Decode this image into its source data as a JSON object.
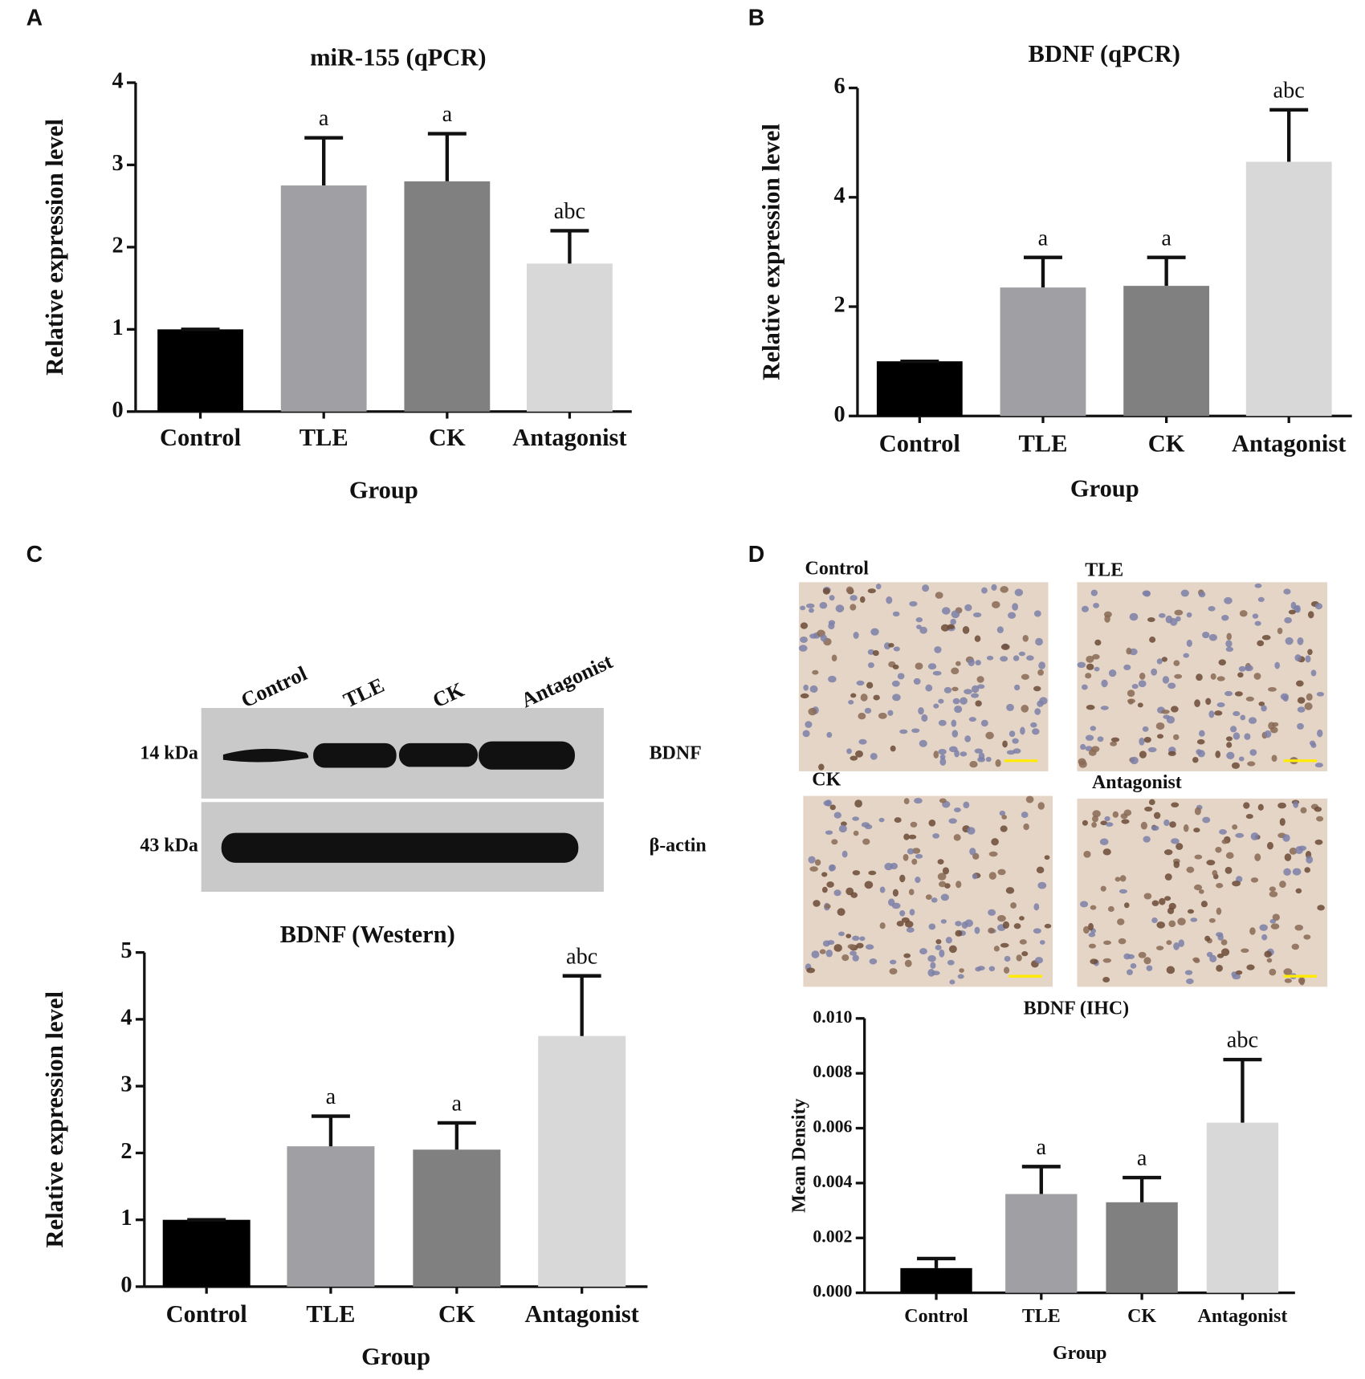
{
  "panels": [
    "A",
    "B",
    "C",
    "D"
  ],
  "chart_data": [
    {
      "type": "bar",
      "title": "miR-155 (qPCR)",
      "xlabel": "Group",
      "ylabel": "Relative expression level",
      "categories": [
        "Control",
        "TLE",
        "CK",
        "Antagonist"
      ],
      "values": [
        1.0,
        2.75,
        2.8,
        1.8
      ],
      "errors": [
        0,
        0.58,
        0.58,
        0.4
      ],
      "annotations": [
        null,
        "a",
        "a",
        "abc"
      ],
      "colors": [
        "#000000",
        "#a0a0a4",
        "#808080",
        "#d8d8d8"
      ],
      "ylim": [
        0,
        4
      ],
      "yticks": [
        0,
        1,
        2,
        3,
        4
      ]
    },
    {
      "type": "bar",
      "title": "BDNF (qPCR)",
      "xlabel": "Group",
      "ylabel": "Relative expression level",
      "categories": [
        "Control",
        "TLE",
        "CK",
        "Antagonist"
      ],
      "values": [
        1.0,
        2.35,
        2.38,
        4.65
      ],
      "errors": [
        0,
        0.55,
        0.52,
        0.95
      ],
      "annotations": [
        null,
        "a",
        "a",
        "abc"
      ],
      "colors": [
        "#000000",
        "#a0a0a4",
        "#808080",
        "#d8d8d8"
      ],
      "ylim": [
        0,
        6
      ],
      "yticks": [
        0,
        2,
        4,
        6
      ]
    },
    {
      "type": "bar",
      "title": "BDNF (Western)",
      "xlabel": "Group",
      "ylabel": "Relative expression level",
      "categories": [
        "Control",
        "TLE",
        "CK",
        "Antagonist"
      ],
      "values": [
        1.0,
        2.1,
        2.05,
        3.75
      ],
      "errors": [
        0,
        0.45,
        0.4,
        0.9
      ],
      "annotations": [
        null,
        "a",
        "a",
        "abc"
      ],
      "colors": [
        "#000000",
        "#a0a0a4",
        "#808080",
        "#d8d8d8"
      ],
      "ylim": [
        0,
        5
      ],
      "yticks": [
        0,
        1,
        2,
        3,
        4,
        5
      ]
    },
    {
      "type": "bar",
      "title": "BDNF (IHC)",
      "xlabel": "Group",
      "ylabel": "Mean Density",
      "categories": [
        "Control",
        "TLE",
        "CK",
        "Antagonist"
      ],
      "values": [
        0.0009,
        0.0036,
        0.0033,
        0.0062
      ],
      "errors": [
        0.00035,
        0.001,
        0.0009,
        0.0023
      ],
      "annotations": [
        null,
        "a",
        "a",
        "abc"
      ],
      "colors": [
        "#000000",
        "#a0a0a4",
        "#808080",
        "#d8d8d8"
      ],
      "ylim": [
        0,
        0.01
      ],
      "yticks": [
        {
          "value": 0,
          "label": "0.000"
        },
        {
          "value": 0.002,
          "label": "0.002"
        },
        {
          "value": 0.004,
          "label": "0.004"
        },
        {
          "value": 0.006,
          "label": "0.006"
        },
        {
          "value": 0.008,
          "label": "0.008"
        },
        {
          "value": 0.01,
          "label": "0.010"
        }
      ]
    }
  ],
  "western_blot": {
    "lanes": [
      "Control",
      "TLE",
      "CK",
      "Antagonist"
    ],
    "rows": [
      {
        "size": "14 kDa",
        "protein": "BDNF"
      },
      {
        "size": "43 kDa",
        "protein": "β-actin"
      }
    ]
  },
  "ihc": {
    "labels": [
      "Control",
      "TLE",
      "CK",
      "Antagonist"
    ]
  }
}
